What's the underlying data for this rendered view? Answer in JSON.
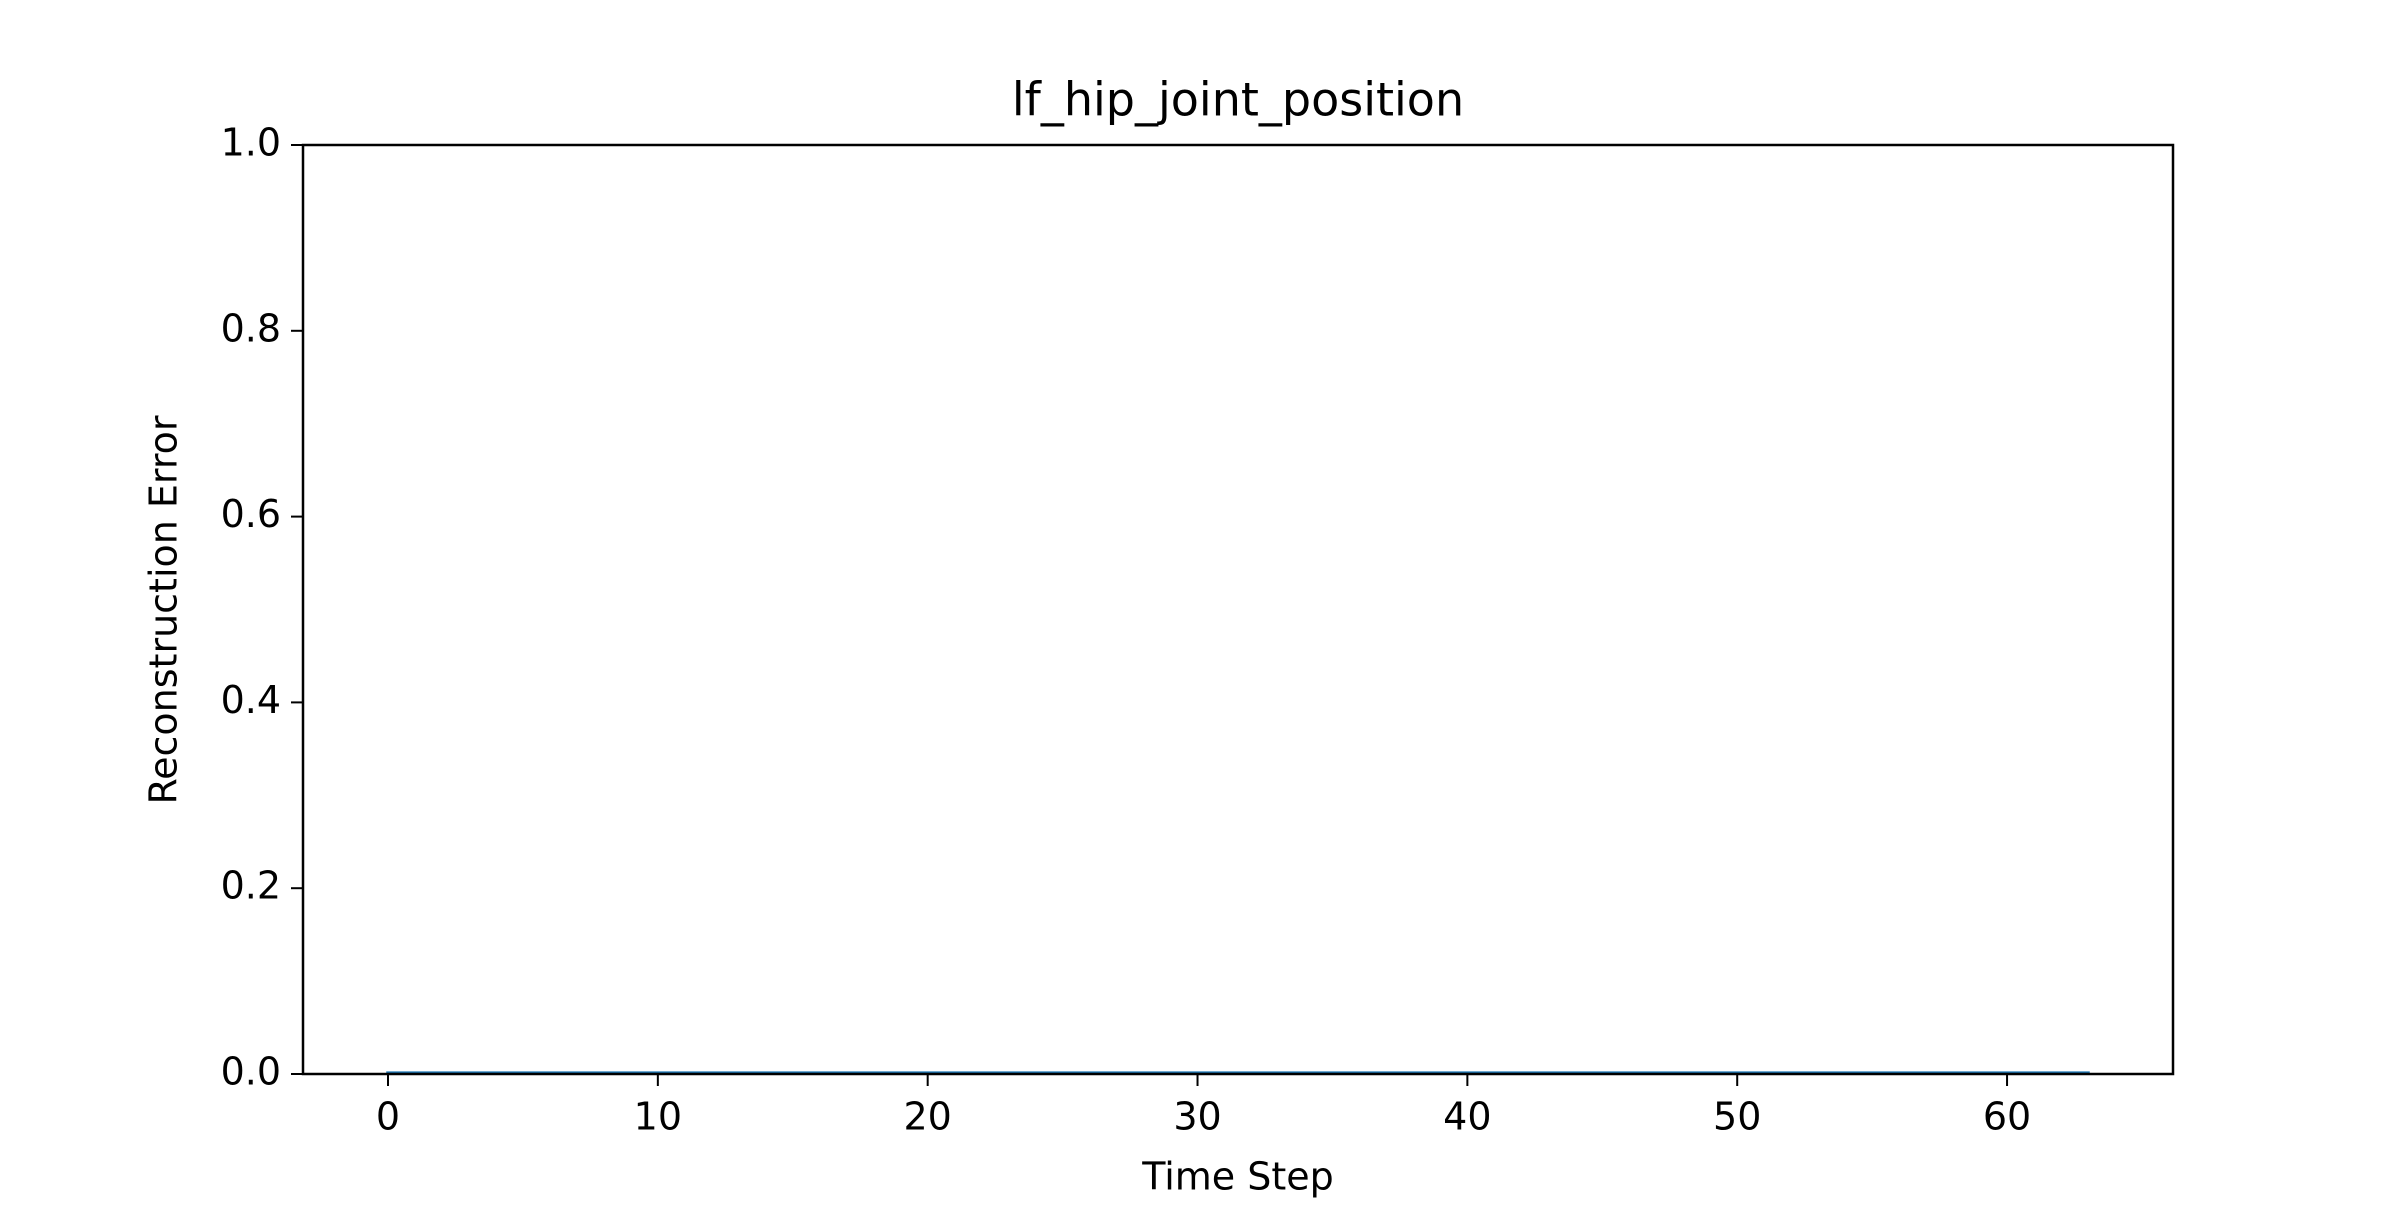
{
  "chart_data": {
    "type": "line",
    "title": "lf_hip_joint_position",
    "xlabel": "Time Step",
    "ylabel": "Reconstruction Error",
    "xlim": [
      -3.15,
      66.15
    ],
    "ylim": [
      0.0,
      1.0
    ],
    "x_ticks": [
      0,
      10,
      20,
      30,
      40,
      50,
      60
    ],
    "x_tick_labels": [
      "0",
      "10",
      "20",
      "30",
      "40",
      "50",
      "60"
    ],
    "y_ticks": [
      0.0,
      0.2,
      0.4,
      0.6,
      0.8,
      1.0
    ],
    "y_tick_labels": [
      "0.0",
      "0.2",
      "0.4",
      "0.6",
      "0.8",
      "1.0"
    ],
    "grid": false,
    "series": [
      {
        "color": "#1f77b4",
        "x": [
          0,
          1,
          2,
          3,
          4,
          5,
          6,
          7,
          8,
          9,
          10,
          11,
          12,
          13,
          14,
          15,
          16,
          17,
          18,
          19,
          20,
          21,
          22,
          23,
          24,
          25,
          26,
          27,
          28,
          29,
          30,
          31,
          32,
          33,
          34,
          35,
          36,
          37,
          38,
          39,
          40,
          41,
          42,
          43,
          44,
          45,
          46,
          47,
          48,
          49,
          50,
          51,
          52,
          53,
          54,
          55,
          56,
          57,
          58,
          59,
          60,
          61,
          62,
          63
        ],
        "y": [
          0.001,
          0.001,
          0.001,
          0.001,
          0.001,
          0.001,
          0.001,
          0.001,
          0.001,
          0.001,
          0.001,
          0.001,
          0.001,
          0.001,
          0.001,
          0.001,
          0.001,
          0.001,
          0.001,
          0.001,
          0.001,
          0.001,
          0.001,
          0.001,
          0.001,
          0.001,
          0.001,
          0.001,
          0.001,
          0.001,
          0.001,
          0.001,
          0.001,
          0.001,
          0.001,
          0.001,
          0.001,
          0.001,
          0.001,
          0.001,
          0.001,
          0.001,
          0.001,
          0.001,
          0.001,
          0.001,
          0.001,
          0.001,
          0.001,
          0.001,
          0.001,
          0.001,
          0.001,
          0.001,
          0.001,
          0.001,
          0.001,
          0.001,
          0.001,
          0.001,
          0.001,
          0.001,
          0.001,
          0.001
        ]
      }
    ]
  }
}
